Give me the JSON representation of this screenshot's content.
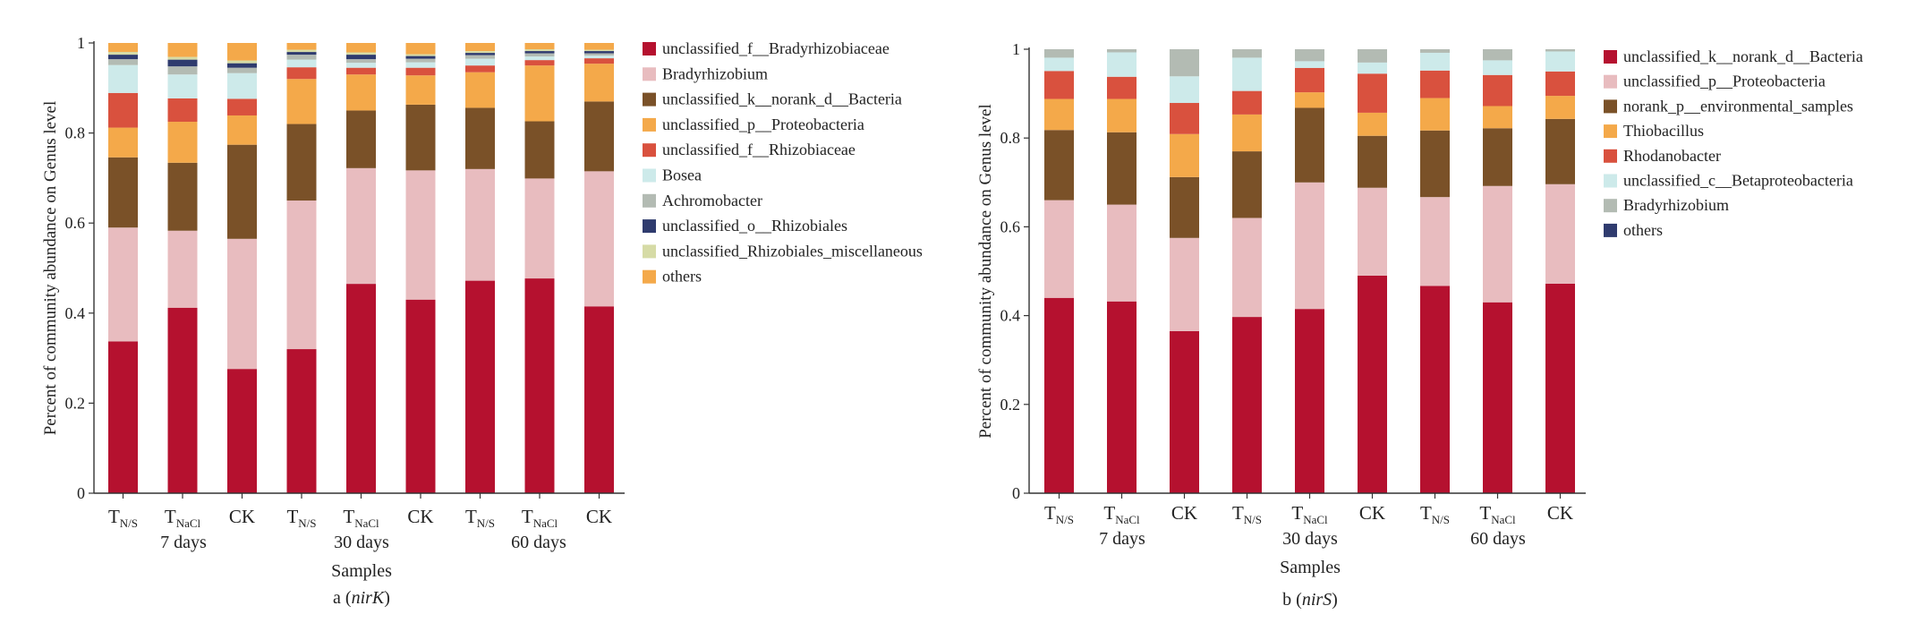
{
  "chart_data": [
    {
      "type": "bar",
      "stacked": true,
      "panel_label": {
        "prefix": "a (",
        "gene": "nirK",
        "suffix": ")"
      },
      "ylabel": "Percent of community abundance on Genus level",
      "xlabel": "Samples",
      "ylim": [
        0,
        1
      ],
      "yticks": [
        "0",
        "0.2",
        "0.4",
        "0.6",
        "0.8",
        "1"
      ],
      "ytick_values": [
        0,
        0.2,
        0.4,
        0.6,
        0.8,
        1
      ],
      "samples": [
        {
          "main": "T",
          "sub": "N/S"
        },
        {
          "main": "T",
          "sub": "NaCl"
        },
        {
          "main": "CK",
          "sub": ""
        },
        {
          "main": "T",
          "sub": "N/S"
        },
        {
          "main": "T",
          "sub": "NaCl"
        },
        {
          "main": "CK",
          "sub": ""
        },
        {
          "main": "T",
          "sub": "N/S"
        },
        {
          "main": "T",
          "sub": "NaCl"
        },
        {
          "main": "CK",
          "sub": ""
        }
      ],
      "groups": [
        "7 days",
        "30 days",
        "60 days"
      ],
      "series": [
        {
          "name": "unclassified_f__Bradyrhizobiaceae",
          "color": "#b5112f",
          "values": [
            0.337,
            0.412,
            0.276,
            0.32,
            0.465,
            0.43,
            0.472,
            0.477,
            0.415
          ]
        },
        {
          "name": "Bradyrhizobium",
          "color": "#e8bcbf",
          "values": [
            0.253,
            0.171,
            0.289,
            0.33,
            0.257,
            0.287,
            0.248,
            0.222,
            0.3
          ]
        },
        {
          "name": "unclassified_k__norank_d__Bacteria",
          "color": "#7a5128",
          "values": [
            0.156,
            0.151,
            0.209,
            0.17,
            0.128,
            0.146,
            0.136,
            0.127,
            0.155
          ]
        },
        {
          "name": "unclassified_p__Proteobacteria",
          "color": "#f4a94a",
          "values": [
            0.066,
            0.091,
            0.065,
            0.1,
            0.08,
            0.065,
            0.079,
            0.124,
            0.084
          ]
        },
        {
          "name": "unclassified_f__Rhizobiaceae",
          "color": "#d9513e",
          "values": [
            0.077,
            0.052,
            0.037,
            0.026,
            0.015,
            0.017,
            0.015,
            0.012,
            0.012
          ]
        },
        {
          "name": "Bosea",
          "color": "#cdeaea",
          "values": [
            0.062,
            0.053,
            0.057,
            0.017,
            0.011,
            0.012,
            0.015,
            0.008,
            0.006
          ]
        },
        {
          "name": "Achromobacter",
          "color": "#b3bbb3",
          "values": [
            0.013,
            0.018,
            0.012,
            0.011,
            0.008,
            0.008,
            0.008,
            0.007,
            0.005
          ]
        },
        {
          "name": "unclassified_o__Rhizobiales",
          "color": "#2f3b6e",
          "values": [
            0.01,
            0.015,
            0.01,
            0.006,
            0.01,
            0.006,
            0.005,
            0.005,
            0.005
          ]
        },
        {
          "name": "unclassified_Rhizobiales_miscellaneous",
          "color": "#d6dba6",
          "values": [
            0.006,
            0.006,
            0.006,
            0.005,
            0.005,
            0.004,
            0.004,
            0.004,
            0.003
          ]
        },
        {
          "name": "others",
          "color": "#f4a94a",
          "values": [
            0.02,
            0.031,
            0.039,
            0.015,
            0.021,
            0.025,
            0.018,
            0.014,
            0.015
          ]
        }
      ]
    },
    {
      "type": "bar",
      "stacked": true,
      "panel_label": {
        "prefix": "b (",
        "gene": "nirS",
        "suffix": ")"
      },
      "ylabel": "Percent of community abundance on Genus level",
      "xlabel": "Samples",
      "ylim": [
        0,
        1
      ],
      "yticks": [
        "0",
        "0.2",
        "0.4",
        "0.6",
        "0.8",
        "1"
      ],
      "ytick_values": [
        0,
        0.2,
        0.4,
        0.6,
        0.8,
        1
      ],
      "samples": [
        {
          "main": "T",
          "sub": "N/S"
        },
        {
          "main": "T",
          "sub": "NaCl"
        },
        {
          "main": "CK",
          "sub": ""
        },
        {
          "main": "T",
          "sub": "N/S"
        },
        {
          "main": "T",
          "sub": "NaCl"
        },
        {
          "main": "CK",
          "sub": ""
        },
        {
          "main": "T",
          "sub": "N/S"
        },
        {
          "main": "T",
          "sub": "NaCl"
        },
        {
          "main": "CK",
          "sub": ""
        }
      ],
      "groups": [
        "7 days",
        "30 days",
        "60 days"
      ],
      "series": [
        {
          "name": "unclassified_k__norank_d__Bacteria",
          "color": "#b5112f",
          "values": [
            0.44,
            0.432,
            0.365,
            0.397,
            0.415,
            0.49,
            0.467,
            0.43,
            0.472
          ]
        },
        {
          "name": "unclassified_p__Proteobacteria",
          "color": "#e8bcbf",
          "values": [
            0.22,
            0.218,
            0.21,
            0.223,
            0.285,
            0.198,
            0.2,
            0.262,
            0.224
          ]
        },
        {
          "name": "norank_p__environmental_samples",
          "color": "#7a5128",
          "values": [
            0.158,
            0.163,
            0.137,
            0.15,
            0.168,
            0.117,
            0.15,
            0.13,
            0.147
          ]
        },
        {
          "name": "Thiobacillus",
          "color": "#f4a94a",
          "values": [
            0.07,
            0.075,
            0.097,
            0.083,
            0.035,
            0.052,
            0.073,
            0.05,
            0.052
          ]
        },
        {
          "name": "Rhodanobacter",
          "color": "#d9513e",
          "values": [
            0.063,
            0.05,
            0.07,
            0.053,
            0.055,
            0.088,
            0.062,
            0.07,
            0.055
          ]
        },
        {
          "name": "unclassified_c__Betaproteobacteria",
          "color": "#cdeaea",
          "values": [
            0.03,
            0.055,
            0.06,
            0.075,
            0.015,
            0.025,
            0.04,
            0.033,
            0.045
          ]
        },
        {
          "name": "Bradyrhizobium",
          "color": "#b3bbb3",
          "values": [
            0.019,
            0.007,
            0.061,
            0.019,
            0.027,
            0.03,
            0.008,
            0.025,
            0.005
          ]
        },
        {
          "name": "others",
          "color": "#2f3b6e",
          "values": [
            0.0,
            0.0,
            0.0,
            0.0,
            0.0,
            0.0,
            0.0,
            0.0,
            0.0
          ]
        }
      ]
    }
  ]
}
